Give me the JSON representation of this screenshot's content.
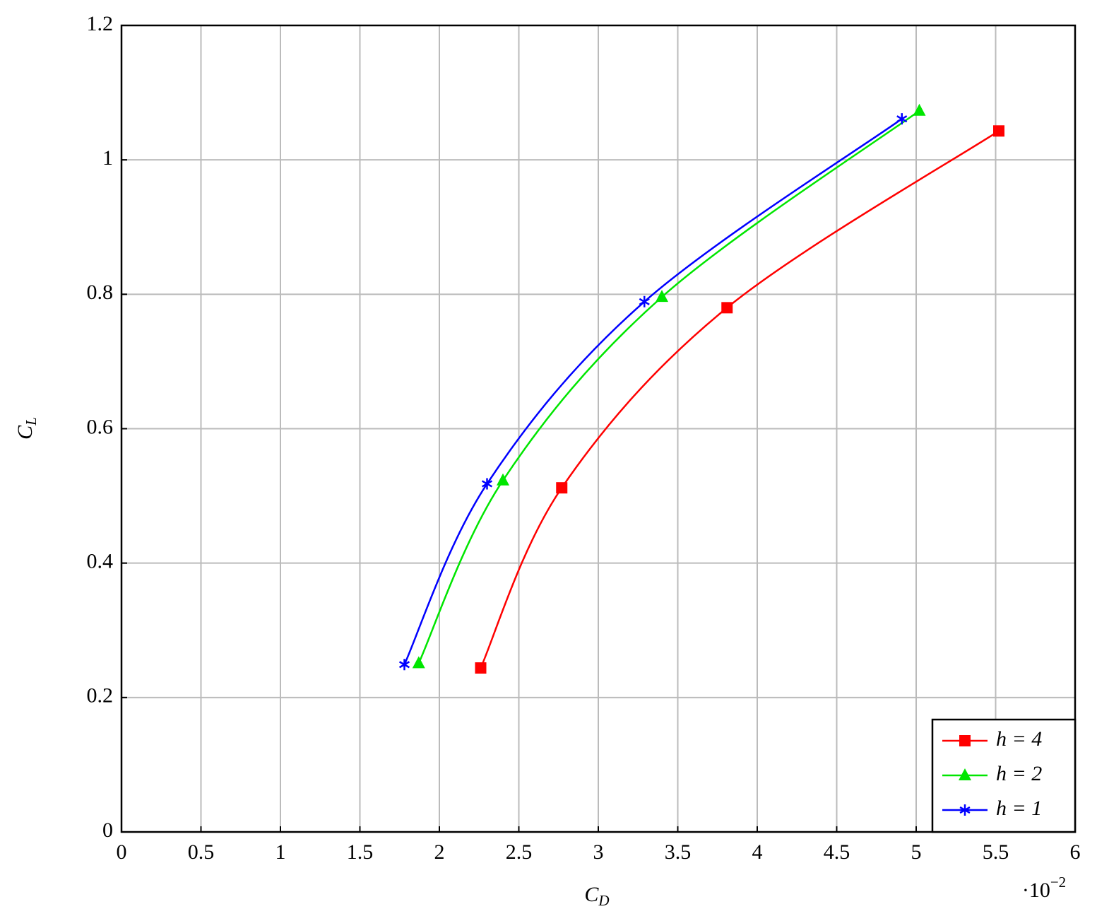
{
  "chart_data": {
    "type": "line",
    "xlabel": {
      "main": "C",
      "sub": "D"
    },
    "ylabel": {
      "main": "C",
      "sub": "L"
    },
    "x_multiplier": {
      "base": "·10",
      "exponent": "−2"
    },
    "xlim": [
      0,
      6
    ],
    "xticks": [
      0,
      0.5,
      1,
      1.5,
      2,
      2.5,
      3,
      3.5,
      4,
      4.5,
      5,
      5.5,
      6
    ],
    "ylim": [
      0,
      1.2
    ],
    "yticks": [
      0,
      0.2,
      0.4,
      0.6,
      0.8,
      1,
      1.2
    ],
    "grid": true,
    "smooth": true,
    "legend_position": "lower right",
    "series": [
      {
        "name": "h = 4",
        "color": "#ff0000",
        "marker": "square",
        "x": [
          2.26,
          2.77,
          3.81,
          5.52
        ],
        "values": [
          0.244,
          0.512,
          0.78,
          1.043
        ]
      },
      {
        "name": "h = 2",
        "color": "#00e600",
        "marker": "triangle",
        "x": [
          1.87,
          2.4,
          3.4,
          5.02
        ],
        "values": [
          0.251,
          0.523,
          0.796,
          1.073
        ]
      },
      {
        "name": "h = 1",
        "color": "#0000ff",
        "marker": "star",
        "x": [
          1.78,
          2.3,
          3.29,
          4.91
        ],
        "values": [
          0.249,
          0.518,
          0.789,
          1.061
        ]
      }
    ]
  }
}
